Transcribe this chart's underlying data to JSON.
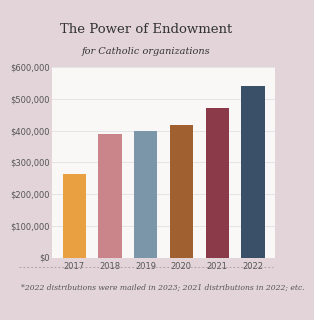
{
  "title": "The Power of Endowment",
  "subtitle": "for Catholic organizations",
  "footnote": "*2022 distributions were mailed in 2023; 2021 distributions in 2022; etc.",
  "categories": [
    "2017",
    "2018",
    "2019",
    "2020",
    "2021",
    "2022"
  ],
  "values": [
    262000,
    390000,
    400000,
    418000,
    472000,
    540000
  ],
  "bar_colors": [
    "#E8A040",
    "#C9858A",
    "#7A96A8",
    "#A06030",
    "#8B3A4A",
    "#3A5068"
  ],
  "background_color": "#E2D4D8",
  "plot_bg_color": "#FFFFFF",
  "ylim": [
    0,
    600000
  ],
  "yticks": [
    0,
    100000,
    200000,
    300000,
    400000,
    500000,
    600000
  ],
  "title_fontsize": 9.5,
  "subtitle_fontsize": 7.0,
  "footnote_fontsize": 5.5,
  "tick_fontsize": 6.0,
  "dotted_line_color": "#B0A0A8",
  "title_color": "#333333",
  "tick_color": "#555555"
}
